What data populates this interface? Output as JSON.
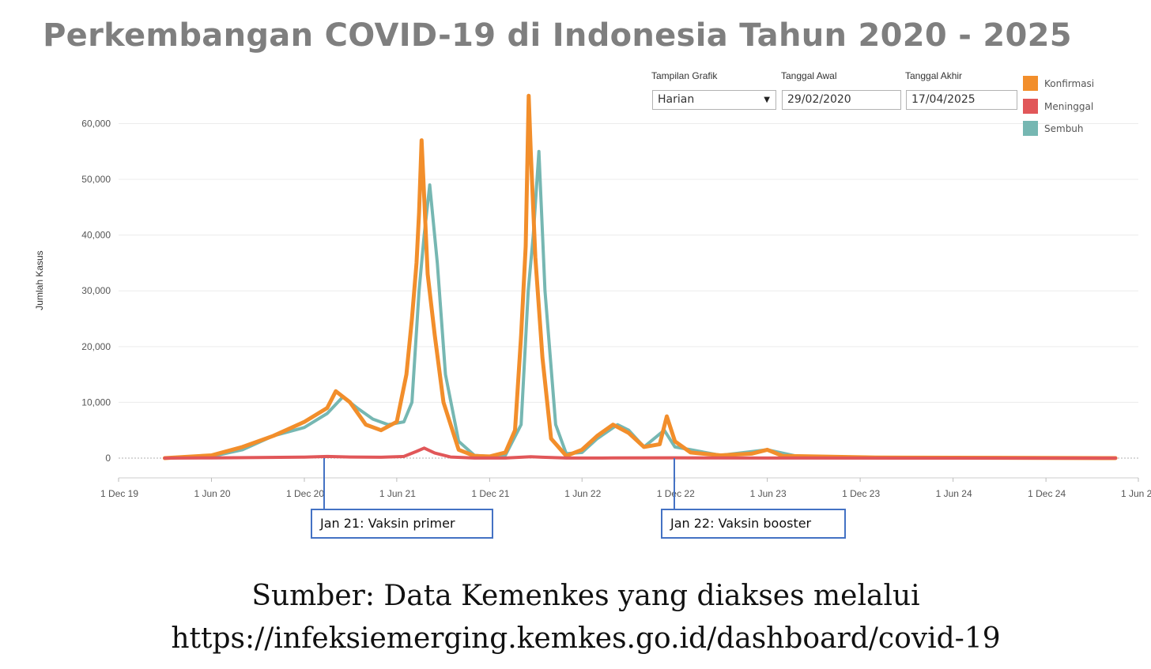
{
  "title": "Perkembangan COVID-19 di Indonesia Tahun 2020 - 2025",
  "controls": {
    "view_label": "Tampilan Grafik",
    "view_value": "Harian",
    "start_label": "Tanggal Awal",
    "start_value": "29/02/2020",
    "end_label": "Tanggal Akhir",
    "end_value": "17/04/2025"
  },
  "annotations": [
    {
      "label": "Jan 21: Vaksin primer",
      "date": "2021-01-01"
    },
    {
      "label": "Jan 22: Vaksin booster",
      "date": "2022-01-01"
    }
  ],
  "source": {
    "line1": "Sumber: Data Kemenkes yang diakses melalui",
    "line2": "https://infeksiemerging.kemkes.go.id/dashboard/covid-19"
  },
  "chart_data": {
    "type": "line",
    "title": "Perkembangan COVID-19 di Indonesia Tahun 2020 - 2025",
    "xlabel": "",
    "ylabel": "Jumlah Kasus",
    "ylim": [
      0,
      68000
    ],
    "xlim": [
      "2019-12-01",
      "2025-06-01"
    ],
    "y_ticks": [
      0,
      10000,
      20000,
      30000,
      40000,
      50000,
      60000
    ],
    "y_tick_labels": [
      "0",
      "10,000",
      "20,000",
      "30,000",
      "40,000",
      "50,000",
      "60,000"
    ],
    "x_tick_labels": [
      "1 Dec 19",
      "1 Jun 20",
      "1 Dec 20",
      "1 Jun 21",
      "1 Dec 21",
      "1 Jun 22",
      "1 Dec 22",
      "1 Jun 23",
      "1 Dec 23",
      "1 Jun 24",
      "1 Dec 24",
      "1 Jun 25"
    ],
    "grid": true,
    "legend_position": "top-right",
    "series": [
      {
        "name": "Konfirmasi",
        "color": "#f28e2b",
        "x": [
          "2020-03-01",
          "2020-06-01",
          "2020-08-01",
          "2020-10-01",
          "2020-12-01",
          "2021-01-15",
          "2021-02-01",
          "2021-03-01",
          "2021-04-01",
          "2021-05-01",
          "2021-06-01",
          "2021-06-20",
          "2021-07-01",
          "2021-07-10",
          "2021-07-15",
          "2021-07-20",
          "2021-08-01",
          "2021-08-15",
          "2021-09-01",
          "2021-10-01",
          "2021-11-01",
          "2021-12-01",
          "2022-01-01",
          "2022-01-20",
          "2022-02-01",
          "2022-02-10",
          "2022-02-16",
          "2022-02-20",
          "2022-03-01",
          "2022-03-15",
          "2022-04-01",
          "2022-05-01",
          "2022-06-01",
          "2022-07-01",
          "2022-08-01",
          "2022-09-01",
          "2022-10-01",
          "2022-11-01",
          "2022-11-15",
          "2022-12-01",
          "2023-01-01",
          "2023-03-01",
          "2023-05-01",
          "2023-06-01",
          "2023-07-01",
          "2024-01-01",
          "2025-04-17"
        ],
        "y": [
          0,
          500,
          2000,
          4000,
          6500,
          9000,
          12000,
          10000,
          6000,
          5000,
          6500,
          15000,
          25000,
          35000,
          44000,
          57000,
          33000,
          22000,
          10000,
          1500,
          400,
          300,
          1000,
          5000,
          22000,
          38000,
          65000,
          55000,
          36000,
          18000,
          3500,
          400,
          1500,
          4000,
          6000,
          4500,
          2000,
          2500,
          7500,
          3000,
          1000,
          500,
          800,
          1500,
          400,
          100,
          0
        ]
      },
      {
        "name": "Meninggal",
        "color": "#e15759",
        "x": [
          "2020-03-01",
          "2020-06-01",
          "2020-09-01",
          "2020-12-01",
          "2021-01-15",
          "2021-03-01",
          "2021-05-01",
          "2021-06-15",
          "2021-07-10",
          "2021-07-25",
          "2021-08-15",
          "2021-09-15",
          "2021-11-01",
          "2022-01-01",
          "2022-02-20",
          "2022-03-15",
          "2022-05-01",
          "2022-08-01",
          "2022-12-01",
          "2023-06-01",
          "2025-04-17"
        ],
        "y": [
          0,
          40,
          100,
          180,
          300,
          200,
          150,
          300,
          1200,
          1800,
          900,
          200,
          20,
          10,
          250,
          150,
          10,
          30,
          50,
          10,
          0
        ]
      },
      {
        "name": "Sembuh",
        "color": "#76b7b2",
        "x": [
          "2020-03-01",
          "2020-06-01",
          "2020-08-01",
          "2020-10-01",
          "2020-12-01",
          "2021-01-15",
          "2021-02-15",
          "2021-03-15",
          "2021-04-15",
          "2021-05-15",
          "2021-06-15",
          "2021-07-01",
          "2021-07-15",
          "2021-07-25",
          "2021-08-05",
          "2021-08-20",
          "2021-09-05",
          "2021-10-01",
          "2021-11-01",
          "2021-12-01",
          "2022-01-01",
          "2022-02-01",
          "2022-02-15",
          "2022-02-25",
          "2022-03-08",
          "2022-03-20",
          "2022-04-10",
          "2022-05-01",
          "2022-06-01",
          "2022-07-01",
          "2022-08-10",
          "2022-09-01",
          "2022-10-01",
          "2022-11-10",
          "2022-12-01",
          "2023-01-01",
          "2023-03-01",
          "2023-06-01",
          "2023-08-01",
          "2024-01-01",
          "2025-04-17"
        ],
        "y": [
          0,
          300,
          1500,
          4000,
          5500,
          8000,
          11000,
          9000,
          7000,
          6000,
          6500,
          10000,
          30000,
          40000,
          49000,
          35000,
          15000,
          3000,
          500,
          300,
          500,
          6000,
          30000,
          40000,
          55000,
          30000,
          6000,
          800,
          1000,
          3500,
          6000,
          5000,
          2000,
          5000,
          2000,
          1500,
          500,
          1500,
          300,
          100,
          0
        ]
      }
    ]
  }
}
